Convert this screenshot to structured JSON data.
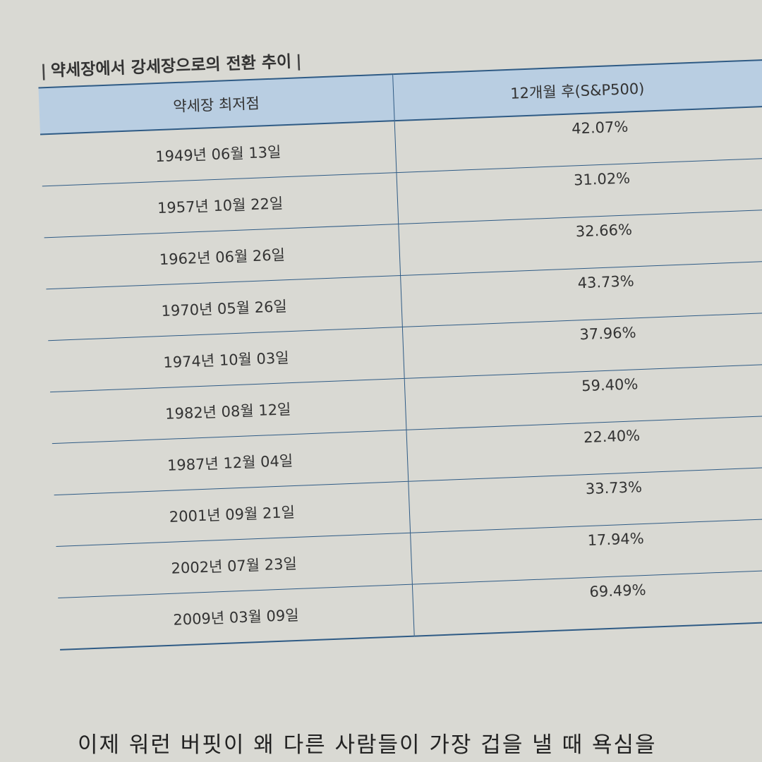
{
  "table": {
    "title": "약세장에서 강세장으로의 전환 추이",
    "headers": [
      "약세장 최저점",
      "12개월 후(S&P500)"
    ],
    "rows": [
      [
        "1949년 06월 13일",
        "42.07%"
      ],
      [
        "1957년 10월 22일",
        "31.02%"
      ],
      [
        "1962년 06월 26일",
        "32.66%"
      ],
      [
        "1970년 05월 26일",
        "43.73%"
      ],
      [
        "1974년 10월 03일",
        "37.96%"
      ],
      [
        "1982년 08월 12일",
        "59.40%"
      ],
      [
        "1987년 12월 04일",
        "22.40%"
      ],
      [
        "2001년 09월 21일",
        "33.73%"
      ],
      [
        "2002년 07월 23일",
        "17.94%"
      ],
      [
        "2009년 03월 09일",
        "69.49%"
      ]
    ]
  },
  "body": {
    "text": "이제 워런 버핏이 왜 다른 사람들이 가장 겁을 낼 때 욕심을"
  }
}
